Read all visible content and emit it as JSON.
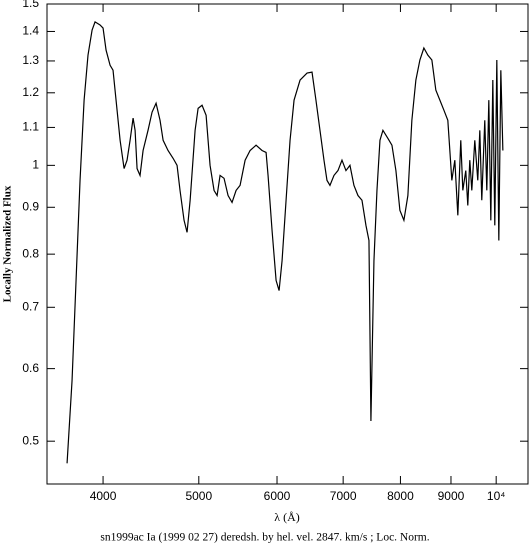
{
  "chart_data": {
    "type": "line",
    "title": "sn1999ac Ia (1999 02 27) deredsh. by hel. vel.  2847. km/s ;  Loc. Norm.",
    "xlabel": "λ (Å)",
    "ylabel": "Locally Normalized Flux",
    "xscale": "log",
    "yscale": "log",
    "color": "#000000",
    "xlim": [
      3510,
      10770
    ],
    "ylim": [
      0.449,
      1.5
    ],
    "xticks": [
      4000,
      5000,
      6000,
      7000,
      8000,
      9000,
      {
        "value": 10000,
        "label": "10⁴"
      }
    ],
    "yticks": [
      0.5,
      0.6,
      0.7,
      0.8,
      0.9,
      1,
      1.1,
      1.2,
      1.3,
      1.4,
      1.5
    ],
    "x": [
      3678,
      3721,
      3756,
      3791,
      3827,
      3862,
      3899,
      3926,
      3972,
      4000,
      4028,
      4066,
      4094,
      4123,
      4162,
      4201,
      4230,
      4260,
      4290,
      4310,
      4330,
      4360,
      4391,
      4442,
      4484,
      4526,
      4568,
      4601,
      4654,
      4709,
      4753,
      4786,
      4831,
      4865,
      4900,
      4957,
      4992,
      5038,
      5086,
      5133,
      5181,
      5218,
      5254,
      5303,
      5353,
      5403,
      5454,
      5505,
      5570,
      5635,
      5714,
      5794,
      5849,
      5876,
      5931,
      5987,
      6029,
      6071,
      6128,
      6185,
      6243,
      6331,
      6435,
      6510,
      6570,
      6632,
      6694,
      6741,
      6788,
      6852,
      6916,
      6981,
      7046,
      7112,
      7178,
      7246,
      7314,
      7382,
      7434,
      7468,
      7521,
      7574,
      7627,
      7680,
      7770,
      7843,
      7916,
      7990,
      8065,
      8140,
      8216,
      8293,
      8371,
      8449,
      8528,
      8608,
      8688,
      8770,
      8852,
      8934,
      9018,
      9081,
      9145,
      9208,
      9252,
      9316,
      9360,
      9404,
      9448,
      9514,
      9580,
      9626,
      9670,
      9738,
      9784,
      9830,
      9876,
      9922,
      9968,
      10015,
      10062,
      10109,
      10157
    ],
    "values": [
      0.473,
      0.582,
      0.749,
      0.963,
      1.178,
      1.319,
      1.405,
      1.434,
      1.423,
      1.412,
      1.336,
      1.286,
      1.27,
      1.178,
      1.065,
      0.992,
      1.013,
      1.065,
      1.126,
      1.092,
      0.992,
      0.975,
      1.038,
      1.092,
      1.143,
      1.169,
      1.12,
      1.065,
      1.038,
      1.018,
      1.0,
      0.939,
      0.871,
      0.845,
      0.916,
      1.092,
      1.154,
      1.163,
      1.134,
      1.0,
      0.939,
      0.927,
      0.975,
      0.968,
      0.927,
      0.911,
      0.939,
      0.951,
      1.013,
      1.038,
      1.052,
      1.038,
      1.033,
      0.975,
      0.849,
      0.749,
      0.73,
      0.787,
      0.916,
      1.065,
      1.178,
      1.239,
      1.261,
      1.264,
      1.178,
      1.092,
      1.013,
      0.963,
      0.951,
      0.975,
      0.987,
      1.013,
      0.987,
      1.0,
      0.951,
      0.927,
      0.916,
      0.86,
      0.828,
      0.526,
      0.787,
      0.939,
      1.065,
      1.092,
      1.07,
      1.052,
      0.987,
      0.893,
      0.871,
      0.927,
      1.12,
      1.239,
      1.303,
      1.343,
      1.319,
      1.303,
      1.208,
      1.178,
      1.149,
      1.12,
      0.963,
      1.013,
      0.882,
      1.065,
      0.939,
      0.987,
      0.904,
      1.013,
      0.939,
      1.065,
      0.963,
      1.092,
      0.916,
      1.12,
      0.939,
      1.178,
      0.871,
      1.239,
      0.86,
      1.303,
      0.828,
      1.27,
      1.038
    ]
  }
}
